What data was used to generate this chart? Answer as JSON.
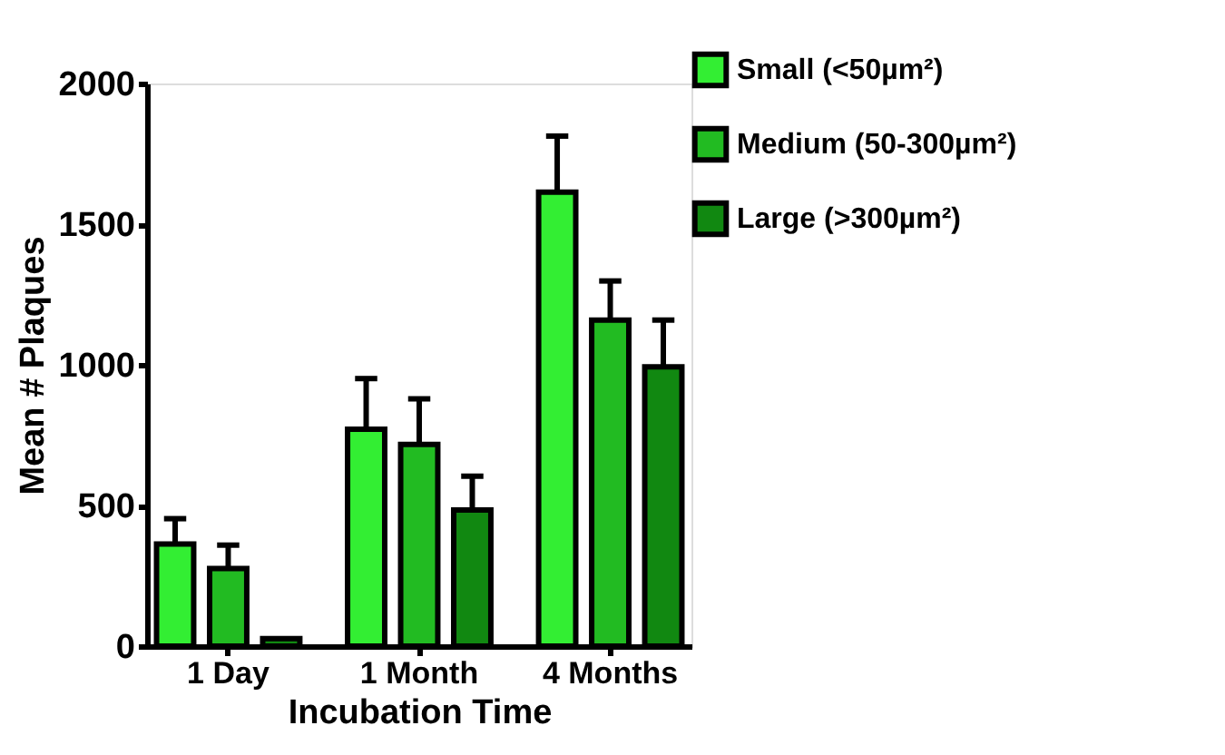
{
  "chart_data": {
    "type": "bar",
    "xlabel": "Incubation Time",
    "ylabel": "Mean # Plaques",
    "categories": [
      "1 Day",
      "1 Month",
      "4 Months"
    ],
    "series": [
      {
        "name": "Small (<50µm²)",
        "color": "#33ee33",
        "values": [
          363,
          771,
          1614
        ],
        "errors": [
          [
            363,
            453
          ],
          [
            771,
            951
          ],
          [
            1614,
            1813
          ]
        ]
      },
      {
        "name": "Medium (50-300µm²)",
        "color": "#22bb22",
        "values": [
          276,
          717,
          1159
        ],
        "errors": [
          [
            276,
            359
          ],
          [
            717,
            879
          ],
          [
            1159,
            1298
          ]
        ]
      },
      {
        "name": "Large (>300µm²)",
        "color": "#118811",
        "values": [
          27,
          484,
          993
        ],
        "errors": [
          null,
          [
            484,
            604
          ],
          [
            993,
            1159
          ]
        ]
      }
    ],
    "ylim": [
      0,
      2000
    ],
    "yticks": [
      0,
      500,
      1000,
      1500,
      2000
    ],
    "grid": false,
    "legend": "top right"
  }
}
